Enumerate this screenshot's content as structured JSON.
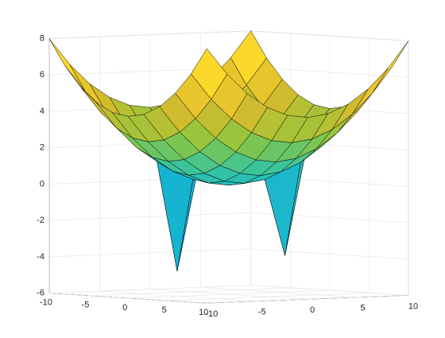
{
  "chart_data": {
    "type": "surface",
    "x": [
      -10,
      -8,
      -6,
      -4,
      -2,
      0,
      2,
      4,
      6,
      8,
      10
    ],
    "y": [
      -10,
      -8,
      -6,
      -4,
      -2,
      0,
      2,
      4,
      6,
      8,
      10
    ],
    "z": [
      [
        8,
        6.56,
        5.44,
        4.64,
        4.16,
        4,
        4.16,
        4.64,
        5.44,
        6.56,
        8
      ],
      [
        6.56,
        5.12,
        4,
        3.2,
        2.72,
        2.56,
        2.72,
        3.2,
        4,
        5.12,
        6.56
      ],
      [
        5.44,
        4,
        2.88,
        2.08,
        1.6,
        1.44,
        1.6,
        2.08,
        2.88,
        4,
        5.44
      ],
      [
        4.64,
        3.2,
        2.08,
        1.28,
        0.8,
        0.64,
        0.8,
        1.28,
        2.08,
        3.2,
        4.64
      ],
      [
        4.16,
        2.72,
        1.6,
        -4.8,
        0.32,
        0.16,
        0.32,
        0.8,
        1.6,
        2.72,
        4.16
      ],
      [
        4,
        2.56,
        1.44,
        0.64,
        0.16,
        0,
        0.16,
        0.64,
        1.44,
        2.56,
        4
      ],
      [
        4.16,
        2.72,
        1.6,
        0.8,
        0.32,
        0.16,
        0.32,
        0.8,
        1.6,
        2.72,
        4.16
      ],
      [
        4.64,
        3.2,
        2.08,
        1.28,
        0.8,
        0.64,
        -3.9,
        1.28,
        2.08,
        3.2,
        4.64
      ],
      [
        5.44,
        4,
        2.88,
        2.08,
        1.6,
        1.44,
        1.6,
        2.08,
        2.88,
        4,
        5.44
      ],
      [
        6.56,
        5.12,
        4,
        3.2,
        2.72,
        2.56,
        2.72,
        3.2,
        4,
        5.12,
        6.56
      ],
      [
        8,
        6.56,
        5.44,
        4.64,
        4.16,
        4,
        4.16,
        4.64,
        5.44,
        6.56,
        8
      ]
    ],
    "xlim": [
      -10,
      10
    ],
    "ylim": [
      -10,
      10
    ],
    "zlim": [
      -6,
      8
    ],
    "xticks": [
      -10,
      -5,
      0,
      5,
      10
    ],
    "yticks": [
      -10,
      -5,
      0,
      5,
      10
    ],
    "zticks": [
      -6,
      -4,
      -2,
      0,
      2,
      4,
      6,
      8
    ],
    "grid": true,
    "colormap": [
      "#3e26a8",
      "#4760f3",
      "#2f96f0",
      "#13b3d5",
      "#36c4a0",
      "#8cc63f",
      "#d9ba2c",
      "#fbd22e",
      "#f9fb15"
    ],
    "edgecolor": "#000000"
  }
}
